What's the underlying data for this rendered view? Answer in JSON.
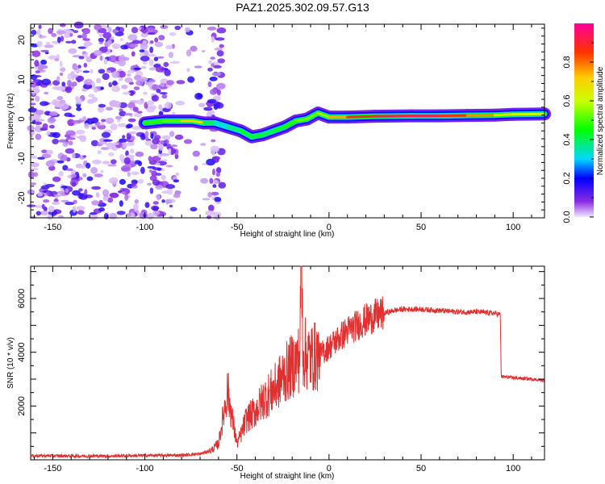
{
  "title": "PAZ1.2025.302.09.57.G13",
  "colorbar": {
    "label": "Normalized spectral amplitude",
    "ticks": [
      "0.0",
      "0.2",
      "0.4",
      "0.6",
      "0.8"
    ],
    "tick_values": [
      0.0,
      0.2,
      0.4,
      0.6,
      0.8
    ],
    "range": [
      0,
      1
    ]
  },
  "chart_data": [
    {
      "type": "heatmap",
      "name": "spectrogram",
      "xlabel": "Height of straight line (km)",
      "ylabel": "Frequency (Hz)",
      "xlim": [
        -162,
        117
      ],
      "ylim": [
        -25,
        24
      ],
      "xticks": [
        -150,
        -100,
        -50,
        0,
        50,
        100
      ],
      "yticks": [
        -20,
        -10,
        0,
        10,
        20
      ],
      "xtick_labels": [
        "-150",
        "-100",
        "-50",
        "0",
        "50",
        "100"
      ],
      "ytick_labels": [
        "-20",
        "-10",
        "0",
        "10",
        "20"
      ],
      "ridge": [
        {
          "x": -100,
          "f": -1.0,
          "amp": 0.45
        },
        {
          "x": -90,
          "f": -0.5,
          "amp": 0.5
        },
        {
          "x": -80,
          "f": -0.5,
          "amp": 0.55
        },
        {
          "x": -74,
          "f": -0.5,
          "amp": 0.85
        },
        {
          "x": -68,
          "f": -1.0,
          "amp": 0.5
        },
        {
          "x": -62,
          "f": -1.0,
          "amp": 0.3
        },
        {
          "x": -55,
          "f": -2.0,
          "amp": 0.35
        },
        {
          "x": -48,
          "f": -3.0,
          "amp": 0.4
        },
        {
          "x": -42,
          "f": -4.5,
          "amp": 0.45
        },
        {
          "x": -36,
          "f": -4.0,
          "amp": 0.4
        },
        {
          "x": -30,
          "f": -3.0,
          "amp": 0.4
        },
        {
          "x": -24,
          "f": -2.0,
          "amp": 0.45
        },
        {
          "x": -18,
          "f": -0.5,
          "amp": 0.5
        },
        {
          "x": -12,
          "f": 0.0,
          "amp": 0.55
        },
        {
          "x": -6,
          "f": 1.5,
          "amp": 0.5
        },
        {
          "x": 0,
          "f": 0.5,
          "amp": 0.65
        },
        {
          "x": 10,
          "f": 0.5,
          "amp": 0.85
        },
        {
          "x": 25,
          "f": 0.7,
          "amp": 0.9
        },
        {
          "x": 45,
          "f": 0.8,
          "amp": 0.95
        },
        {
          "x": 60,
          "f": 0.8,
          "amp": 0.9
        },
        {
          "x": 75,
          "f": 0.9,
          "amp": 0.85
        },
        {
          "x": 90,
          "f": 1.0,
          "amp": 0.7
        },
        {
          "x": 100,
          "f": 1.2,
          "amp": 0.65
        },
        {
          "x": 117,
          "f": 1.3,
          "amp": 0.55
        }
      ]
    },
    {
      "type": "line",
      "name": "snr",
      "xlabel": "Height of straight line (km)",
      "ylabel": "SNR (10 * v/v)",
      "xlim": [
        -162,
        117
      ],
      "ylim": [
        0,
        7200
      ],
      "xticks": [
        -150,
        -100,
        -50,
        0,
        50,
        100
      ],
      "yticks": [
        2000,
        4000,
        6000
      ],
      "xtick_labels": [
        "-150",
        "-100",
        "-50",
        "0",
        "50",
        "100"
      ],
      "ytick_labels": [
        "2000",
        "4000",
        "6000"
      ],
      "color": "#e03030",
      "series": [
        {
          "name": "SNR",
          "x": [
            -162,
            -120,
            -100,
            -80,
            -70,
            -64,
            -60,
            -57,
            -55,
            -53,
            -50,
            -48,
            -45,
            -40,
            -35,
            -30,
            -25,
            -20,
            -16,
            -15,
            -14,
            -10,
            -5,
            0,
            5,
            10,
            15,
            20,
            25,
            30,
            35,
            40,
            50,
            60,
            70,
            80,
            90,
            93,
            93.5,
            100,
            110,
            117
          ],
          "y": [
            150,
            140,
            160,
            170,
            220,
            350,
            600,
            1800,
            2600,
            1700,
            600,
            900,
            1500,
            1800,
            2300,
            2600,
            3100,
            3500,
            3800,
            7200,
            4000,
            3800,
            3900,
            4200,
            4500,
            4800,
            5000,
            5200,
            5350,
            5450,
            5550,
            5600,
            5600,
            5550,
            5500,
            5500,
            5450,
            5400,
            3100,
            3050,
            3000,
            2950
          ]
        }
      ]
    }
  ]
}
